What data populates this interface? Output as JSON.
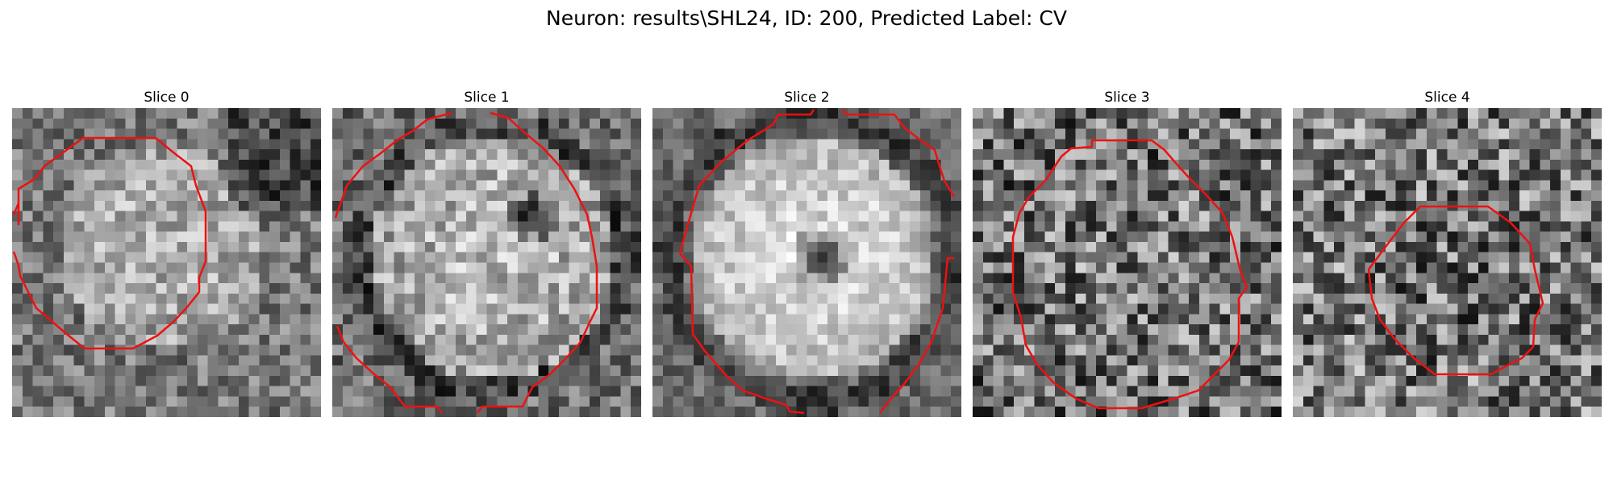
{
  "figure": {
    "suptitle": "Neuron: results\\SHL24, ID: 200, Predicted Label: CV",
    "contour_color": "#ee1111",
    "colormap": "gray"
  },
  "slices": [
    {
      "title": "Slice 0"
    },
    {
      "title": "Slice 1"
    },
    {
      "title": "Slice 2"
    },
    {
      "title": "Slice 3"
    },
    {
      "title": "Slice 4"
    }
  ]
}
